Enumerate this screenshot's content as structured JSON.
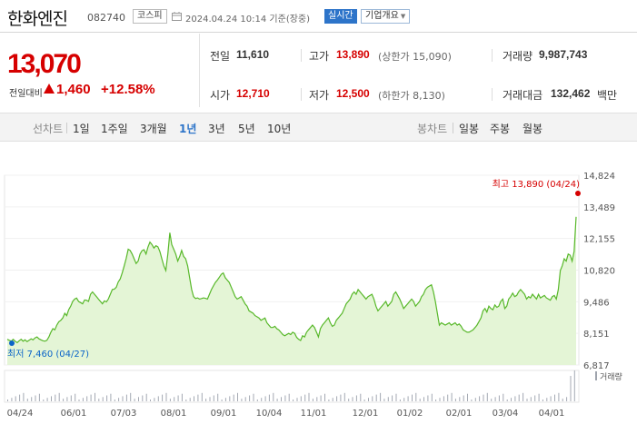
{
  "header": {
    "stock_name": "한화엔진",
    "stock_code": "082740",
    "market": "코스피",
    "timestamp": "2024.04.24 10:14 기준(장중)",
    "realtime": "실시간",
    "corp_overview": "기업개요"
  },
  "price": {
    "current": "13,070",
    "change_label": "전일대비",
    "change": "1,460",
    "change_pct": "+12.58%",
    "direction": "up"
  },
  "info": {
    "prev_close_label": "전일",
    "prev_close": "11,610",
    "high_label": "고가",
    "high": "13,890",
    "upper_limit": "(상한가 15,090)",
    "volume_label": "거래량",
    "volume": "9,987,743",
    "open_label": "시가",
    "open": "12,710",
    "low_label": "저가",
    "low": "12,500",
    "lower_limit": "(하한가 8,130)",
    "turnover_label": "거래대금",
    "turnover": "132,462",
    "turnover_unit": "백만"
  },
  "periods": {
    "line_label": "선차트",
    "line_items": [
      "1일",
      "1주일",
      "3개월",
      "1년",
      "3년",
      "5년",
      "10년"
    ],
    "active": "1년",
    "candle_label": "봉차트",
    "candle_items": [
      "일봉",
      "주봉",
      "월봉"
    ]
  },
  "chart_data": {
    "type": "area",
    "y_ticks": [
      "14,824",
      "13,489",
      "12,155",
      "10,820",
      "9,486",
      "8,151",
      "6,817"
    ],
    "ylim": [
      6817,
      14824
    ],
    "x_ticks": [
      "04/24",
      "06/01",
      "07/03",
      "08/01",
      "09/01",
      "10/04",
      "11/01",
      "12/01",
      "01/02",
      "02/01",
      "03/04",
      "04/01"
    ],
    "max_label": "최고 13,890 (04/24)",
    "min_label": "최저 7,460 (04/27)",
    "volume_legend": "거래량",
    "colors": {
      "line": "#58b82a",
      "fill": "#e4f5d6",
      "max": "#d60000",
      "min": "#0a64c8"
    },
    "values": [
      7900,
      7860,
      7820,
      7900,
      7820,
      7760,
      7840,
      7900,
      7820,
      7880,
      7800,
      7860,
      7920,
      7880,
      7960,
      8000,
      7920,
      7880,
      7840,
      7820,
      7860,
      8000,
      8200,
      8350,
      8300,
      8500,
      8640,
      8700,
      8800,
      9000,
      8900,
      9150,
      9300,
      9500,
      9600,
      9640,
      9500,
      9450,
      9400,
      9560,
      9550,
      9500,
      9800,
      9900,
      9800,
      9700,
      9600,
      9500,
      9400,
      9520,
      9480,
      9600,
      9800,
      10000,
      10020,
      10100,
      10320,
      10450,
      10700,
      11000,
      11320,
      11700,
      11650,
      11500,
      11300,
      11100,
      11200,
      11500,
      11640,
      11680,
      11500,
      11800,
      12000,
      11900,
      11750,
      11850,
      11800,
      11600,
      11300,
      11000,
      10800,
      11500,
      12400,
      11900,
      11700,
      11500,
      11200,
      11400,
      11650,
      11400,
      11300,
      11000,
      10500,
      10000,
      9700,
      9620,
      9650,
      9600,
      9620,
      9650,
      9630,
      9600,
      9800,
      10000,
      10150,
      10300,
      10400,
      10520,
      10650,
      10700,
      10500,
      10400,
      10300,
      10100,
      9900,
      9700,
      9600,
      9650,
      9700,
      9550,
      9400,
      9300,
      9100,
      9050,
      9000,
      8900,
      8850,
      8800,
      8700,
      8750,
      8800,
      8600,
      8500,
      8400,
      8400,
      8450,
      8350,
      8300,
      8200,
      8100,
      8050,
      8100,
      8150,
      8100,
      8200,
      8150,
      7980,
      7900,
      7850,
      8050,
      8000,
      8200,
      8300,
      8400,
      8500,
      8400,
      8200,
      8000,
      8350,
      8500,
      8600,
      8700,
      8800,
      8600,
      8450,
      8500,
      8700,
      8800,
      8900,
      9000,
      9200,
      9400,
      9500,
      9600,
      9800,
      9900,
      9800,
      10000,
      9900,
      9800,
      9700,
      9600,
      9700,
      9750,
      9800,
      9600,
      9300,
      9100,
      9200,
      9300,
      9400,
      9500,
      9300,
      9400,
      9500,
      9800,
      9900,
      9750,
      9600,
      9400,
      9200,
      9300,
      9400,
      9500,
      9600,
      9500,
      9300,
      9400,
      9500,
      9700,
      9800,
      10000,
      10100,
      10150,
      10200,
      9900,
      9500,
      9000,
      8500,
      8600,
      8550,
      8500,
      8550,
      8600,
      8500,
      8550,
      8600,
      8500,
      8550,
      8450,
      8300,
      8250,
      8200,
      8200,
      8250,
      8300,
      8400,
      8500,
      8650,
      8800,
      9100,
      9200,
      9050,
      9300,
      9200,
      9150,
      9350,
      9250,
      9300,
      9500,
      9600,
      9200,
      9300,
      9600,
      9700,
      9850,
      9700,
      9750,
      9900,
      10000,
      9900,
      9800,
      9600,
      9700,
      9650,
      9800,
      9700,
      9600,
      9800,
      9650,
      9700,
      9750,
      9650,
      9600,
      9550,
      9700,
      9750,
      9600,
      10000,
      10800,
      11000,
      11300,
      11200,
      11500,
      11450,
      11200,
      11610,
      13070
    ]
  }
}
